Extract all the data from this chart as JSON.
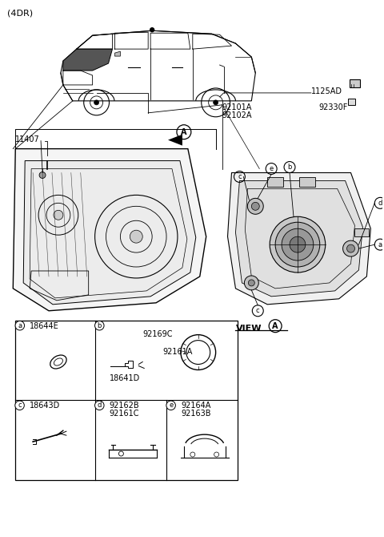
{
  "bg_color": "#ffffff",
  "line_color": "#000000",
  "fig_width": 4.8,
  "fig_height": 6.7,
  "dpi": 100,
  "labels": {
    "top_left": "(4DR)",
    "part_11407": "11407",
    "part_92101A": "92101A",
    "part_92102A": "92102A",
    "part_1125AD": "1125AD",
    "part_92330F": "92330F",
    "part_18644E": "18644E",
    "part_18641D": "18641D",
    "part_92169C": "92169C",
    "part_92161A": "92161A",
    "part_18643D": "18643D",
    "part_92162B": "92162B",
    "part_92161C": "92161C",
    "part_92164A": "92164A",
    "part_92163B": "92163B",
    "view_a": "VIEW"
  }
}
